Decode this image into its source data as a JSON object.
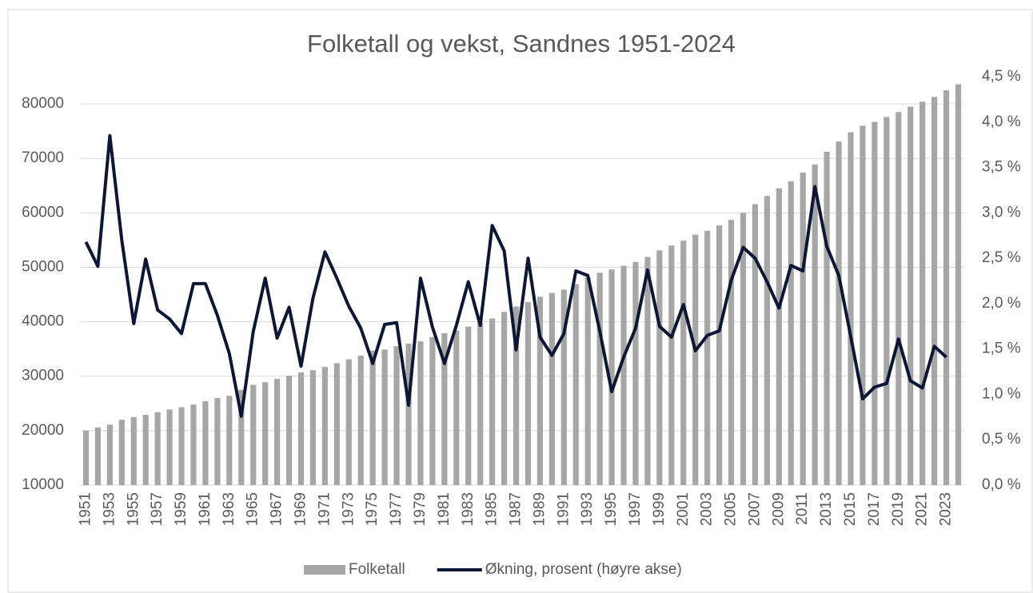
{
  "chart_data": {
    "type": "combo",
    "title": "Folketall og vekst, Sandnes 1951-2024",
    "categories": [
      "1951",
      null,
      "1953",
      null,
      "1955",
      null,
      "1957",
      null,
      "1959",
      null,
      "1961",
      null,
      "1963",
      null,
      "1965",
      null,
      "1967",
      null,
      "1969",
      null,
      "1971",
      null,
      "1973",
      null,
      "1975",
      null,
      "1977",
      null,
      "1979",
      null,
      "1981",
      null,
      "1983",
      null,
      "1985",
      null,
      "1987",
      null,
      "1989",
      null,
      "1991",
      null,
      "1993",
      null,
      "1995",
      null,
      "1997",
      null,
      "1999",
      null,
      "2001",
      null,
      "2003",
      null,
      "2005",
      null,
      "2007",
      null,
      "2009",
      null,
      "2011",
      null,
      "2013",
      null,
      "2015",
      null,
      "2017",
      null,
      "2019",
      null,
      "2021",
      null,
      "2023",
      null
    ],
    "series": [
      {
        "name": "Folketall",
        "type": "bar",
        "color": "#a6a6a6",
        "values": [
          20000,
          20600,
          21100,
          22000,
          22500,
          22900,
          23400,
          23900,
          24300,
          24800,
          25400,
          26000,
          26400,
          27500,
          28400,
          28900,
          29500,
          30100,
          30700,
          31100,
          31700,
          32400,
          33100,
          33800,
          34700,
          34900,
          35500,
          36000,
          36400,
          37200,
          37900,
          38400,
          39100,
          39800,
          40600,
          41800,
          42800,
          43600,
          44600,
          45300,
          45900,
          46900,
          48100,
          49000,
          49600,
          50300,
          51000,
          51900,
          53100,
          54000,
          54900,
          56000,
          56700,
          57700,
          58700,
          60000,
          61600,
          63100,
          64500,
          65800,
          67400,
          68900,
          71200,
          73100,
          74800,
          76000,
          76700,
          77600,
          78500,
          79500,
          80400,
          81300,
          82500,
          83600
        ]
      },
      {
        "name": "Økning, prosent (høyre akse)",
        "type": "line",
        "axis": "y2",
        "color": "#0d1635",
        "values": [
          2.68,
          2.41,
          3.85,
          2.7,
          1.78,
          2.49,
          1.93,
          1.83,
          1.67,
          2.22,
          2.22,
          1.87,
          1.45,
          0.76,
          1.69,
          2.28,
          1.62,
          1.96,
          1.31,
          2.06,
          2.57,
          2.28,
          1.97,
          1.73,
          1.34,
          1.77,
          1.79,
          0.88,
          2.28,
          1.74,
          1.34,
          1.76,
          2.24,
          1.76,
          2.86,
          2.58,
          1.49,
          2.5,
          1.63,
          1.43,
          1.67,
          2.36,
          2.31,
          1.7,
          1.03,
          1.41,
          1.73,
          2.37,
          1.75,
          1.63,
          1.99,
          1.48,
          1.65,
          1.7,
          2.26,
          2.62,
          2.5,
          2.24,
          1.95,
          2.42,
          2.36,
          3.29,
          2.63,
          2.31,
          1.64,
          0.95,
          1.08,
          1.12,
          1.61,
          1.15,
          1.07,
          1.53,
          1.41,
          null
        ]
      }
    ],
    "ylim": [
      10000,
      85000
    ],
    "yticks": [
      10000,
      20000,
      30000,
      40000,
      50000,
      60000,
      70000,
      80000
    ],
    "y2lim": [
      0,
      4.5
    ],
    "y2ticks": [
      {
        "value": 0,
        "label": "0,0 %"
      },
      {
        "value": 0.5,
        "label": "0,5 %"
      },
      {
        "value": 1,
        "label": "1,0 %"
      },
      {
        "value": 1.5,
        "label": "1,5 %"
      },
      {
        "value": 2,
        "label": "2,0 %"
      },
      {
        "value": 2.5,
        "label": "2,5 %"
      },
      {
        "value": 3,
        "label": "3,0 %"
      },
      {
        "value": 3.5,
        "label": "3,5 %"
      },
      {
        "value": 4,
        "label": "4,0 %"
      },
      {
        "value": 4.5,
        "label": "4,5 %"
      }
    ],
    "grid": true,
    "legend": "bottom"
  }
}
